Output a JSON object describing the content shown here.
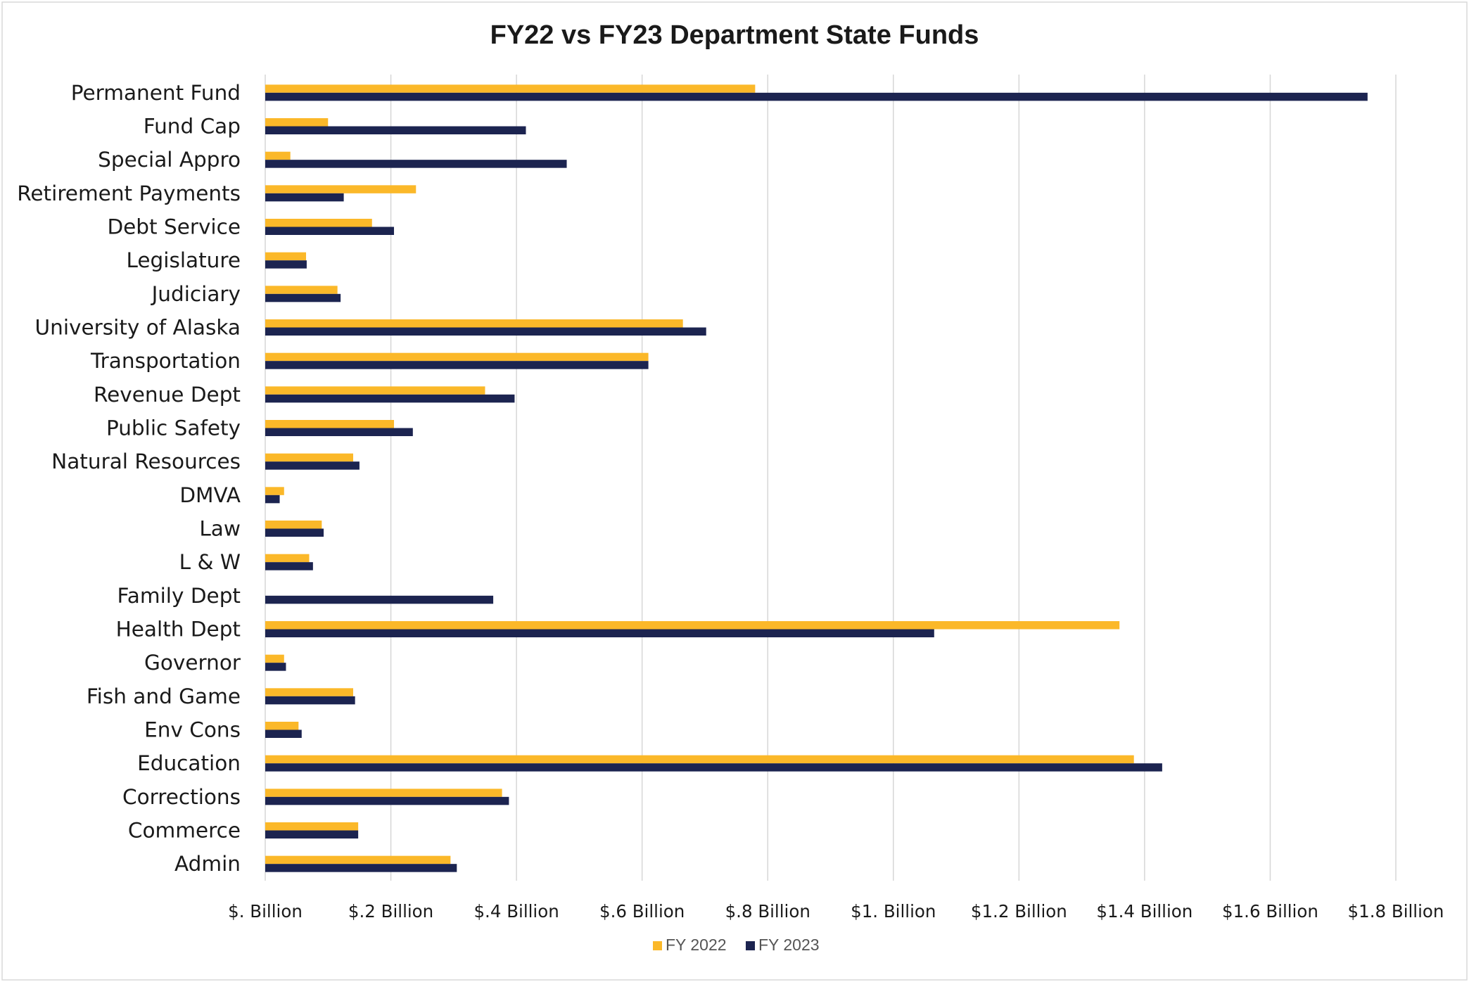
{
  "chart_data": {
    "type": "bar",
    "orientation": "horizontal",
    "title": "FY22 vs FY23 Department State Funds",
    "xlabel": "",
    "ylabel": "",
    "categories": [
      "Permanent Fund",
      "Fund Cap",
      "Special Appro",
      "Retirement Payments",
      "Debt Service",
      "Legislature",
      "Judiciary",
      "University of Alaska",
      "Transportation",
      "Revenue Dept",
      "Public Safety",
      "Natural Resources",
      "DMVA",
      "Law",
      "L & W",
      "Family Dept",
      "Health Dept",
      "Governor",
      "Fish and Game",
      "Env Cons",
      "Education",
      "Corrections",
      "Commerce",
      "Admin"
    ],
    "series": [
      {
        "name": "FY 2022",
        "color": "#FBB829",
        "values": [
          0.78,
          0.1,
          0.04,
          0.24,
          0.17,
          0.065,
          0.115,
          0.665,
          0.61,
          0.35,
          0.205,
          0.14,
          0.03,
          0.09,
          0.07,
          0.0,
          1.36,
          0.03,
          0.14,
          0.053,
          1.383,
          0.377,
          0.148,
          0.295
        ]
      },
      {
        "name": "FY 2023",
        "color": "#1C2450",
        "values": [
          1.755,
          0.415,
          0.48,
          0.125,
          0.205,
          0.066,
          0.12,
          0.702,
          0.61,
          0.397,
          0.235,
          0.15,
          0.023,
          0.093,
          0.076,
          0.363,
          1.065,
          0.033,
          0.143,
          0.058,
          1.428,
          0.388,
          0.148,
          0.305
        ]
      }
    ],
    "xlim": [
      0,
      1.8
    ],
    "x_ticks": [
      0,
      0.2,
      0.4,
      0.6,
      0.8,
      1.0,
      1.2,
      1.4,
      1.6,
      1.8
    ],
    "x_tick_labels": [
      "$. Billion",
      "$.2 Billion",
      "$.4 Billion",
      "$.6 Billion",
      "$.8 Billion",
      "$1. Billion",
      "$1.2 Billion",
      "$1.4 Billion",
      "$1.6 Billion",
      "$1.8 Billion"
    ],
    "x_units": "billions of dollars",
    "grid": "vertical",
    "legend_position": "bottom-center"
  }
}
